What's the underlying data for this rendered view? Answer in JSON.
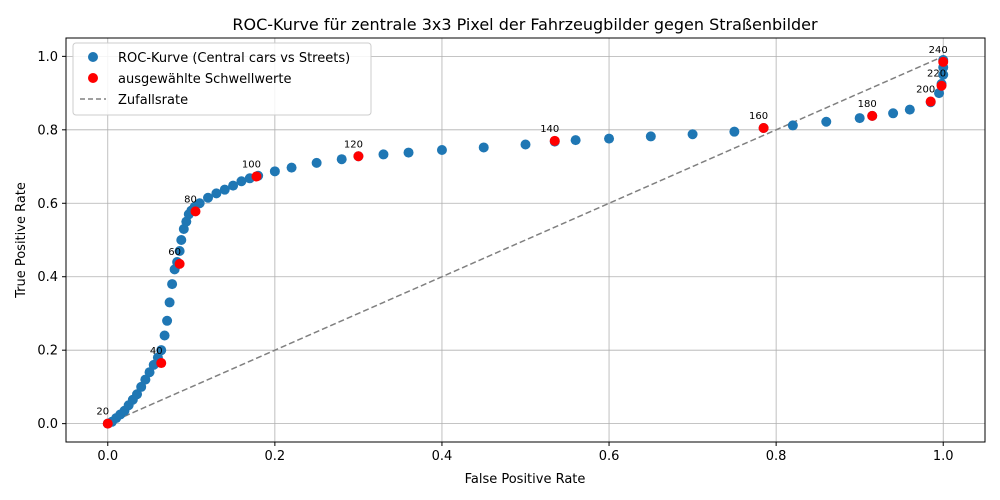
{
  "chart_data": {
    "type": "scatter",
    "title": "ROC-Kurve für zentrale 3x3 Pixel der Fahrzeugbilder gegen Straßenbilder",
    "xlabel": "False Positive Rate",
    "ylabel": "True Positive Rate",
    "xlim": [
      -0.05,
      1.05
    ],
    "ylim": [
      -0.05,
      1.05
    ],
    "xticks": [
      "0.0",
      "0.2",
      "0.4",
      "0.6",
      "0.8",
      "1.0"
    ],
    "yticks": [
      "0.0",
      "0.2",
      "0.4",
      "0.6",
      "0.8",
      "1.0"
    ],
    "grid": true,
    "legend_position": "top-left",
    "colors": {
      "curve": "#1f77b4",
      "thresholds": "#ff0000",
      "random": "#808080"
    },
    "series": [
      {
        "name": "ROC-Kurve (Central cars vs Streets)",
        "kind": "scatter",
        "x": [
          0.0,
          0.005,
          0.01,
          0.015,
          0.02,
          0.025,
          0.03,
          0.035,
          0.04,
          0.045,
          0.05,
          0.055,
          0.06,
          0.064,
          0.068,
          0.071,
          0.074,
          0.077,
          0.08,
          0.083,
          0.086,
          0.088,
          0.091,
          0.094,
          0.097,
          0.1,
          0.104,
          0.11,
          0.12,
          0.13,
          0.14,
          0.15,
          0.16,
          0.17,
          0.18,
          0.2,
          0.22,
          0.25,
          0.28,
          0.3,
          0.33,
          0.36,
          0.4,
          0.45,
          0.5,
          0.535,
          0.56,
          0.6,
          0.65,
          0.7,
          0.75,
          0.785,
          0.82,
          0.86,
          0.9,
          0.915,
          0.94,
          0.96,
          0.985,
          0.995,
          0.998,
          1.0,
          1.0,
          1.0
        ],
        "y": [
          0.0,
          0.005,
          0.015,
          0.025,
          0.035,
          0.05,
          0.065,
          0.08,
          0.1,
          0.12,
          0.14,
          0.16,
          0.18,
          0.2,
          0.24,
          0.28,
          0.33,
          0.38,
          0.42,
          0.44,
          0.47,
          0.5,
          0.53,
          0.55,
          0.57,
          0.58,
          0.59,
          0.6,
          0.615,
          0.627,
          0.637,
          0.648,
          0.66,
          0.668,
          0.675,
          0.687,
          0.697,
          0.71,
          0.72,
          0.728,
          0.733,
          0.738,
          0.745,
          0.752,
          0.76,
          0.768,
          0.772,
          0.776,
          0.782,
          0.788,
          0.795,
          0.805,
          0.812,
          0.822,
          0.832,
          0.838,
          0.845,
          0.855,
          0.875,
          0.9,
          0.925,
          0.95,
          0.97,
          0.99
        ]
      },
      {
        "name": "ausgewählte Schwellwerte",
        "kind": "scatter",
        "x": [
          0.0,
          0.064,
          0.086,
          0.105,
          0.178,
          0.3,
          0.535,
          0.785,
          0.915,
          0.985,
          0.998,
          1.0
        ],
        "y": [
          0.0,
          0.165,
          0.435,
          0.578,
          0.673,
          0.728,
          0.77,
          0.805,
          0.838,
          0.877,
          0.92,
          0.985
        ],
        "labels": [
          "20",
          "40",
          "60",
          "80",
          "100",
          "120",
          "140",
          "160",
          "180",
          "200",
          "220",
          "240"
        ]
      },
      {
        "name": "Zufallsrate",
        "kind": "line",
        "x": [
          0.0,
          1.0
        ],
        "y": [
          0.0,
          1.0
        ]
      }
    ]
  }
}
